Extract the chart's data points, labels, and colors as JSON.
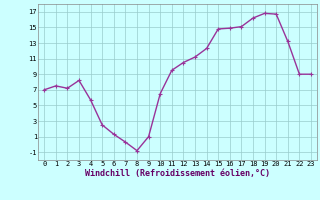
{
  "x": [
    0,
    1,
    2,
    3,
    4,
    5,
    6,
    7,
    8,
    9,
    10,
    11,
    12,
    13,
    14,
    15,
    16,
    17,
    18,
    19,
    20,
    21,
    22,
    23
  ],
  "y": [
    7.0,
    7.5,
    7.2,
    8.2,
    5.7,
    2.5,
    1.3,
    0.3,
    -0.8,
    1.0,
    6.5,
    9.5,
    10.5,
    11.2,
    12.3,
    14.8,
    14.9,
    15.1,
    16.2,
    16.8,
    16.7,
    13.2,
    9.0,
    9.0
  ],
  "line_color": "#993399",
  "marker": "+",
  "marker_size": 3,
  "marker_lw": 0.8,
  "line_width": 1.0,
  "bg_color": "#ccffff",
  "grid_color": "#99cccc",
  "xlabel": "Windchill (Refroidissement éolien,°C)",
  "xlabel_color": "#660066",
  "xlabel_fontsize": 6.0,
  "ylim": [
    -2,
    18
  ],
  "xlim": [
    -0.5,
    23.5
  ],
  "yticks": [
    -1,
    1,
    3,
    5,
    7,
    9,
    11,
    13,
    15,
    17
  ],
  "xticks": [
    0,
    1,
    2,
    3,
    4,
    5,
    6,
    7,
    8,
    9,
    10,
    11,
    12,
    13,
    14,
    15,
    16,
    17,
    18,
    19,
    20,
    21,
    22,
    23
  ],
  "tick_fontsize": 5.0,
  "spine_color": "#888888"
}
